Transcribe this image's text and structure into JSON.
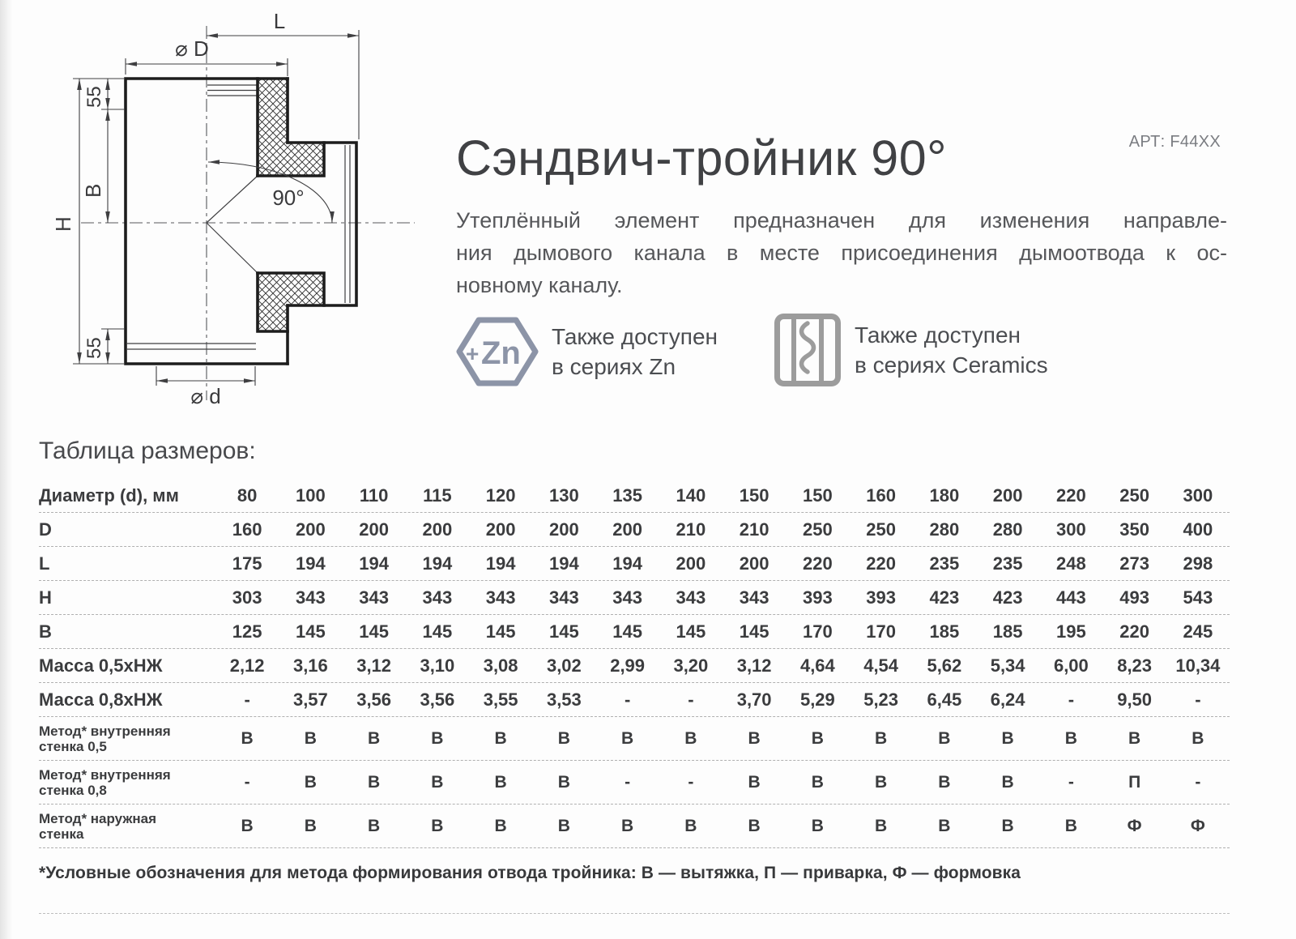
{
  "header": {
    "title": "Сэндвич-тройник 90°",
    "article": "АРТ: F44XX",
    "description_lines": [
      "Утеплённый элемент предназначен для изменения направле-",
      "ния дымового канала в месте присоединения дымоотвода к ос-",
      "новному каналу."
    ]
  },
  "availability": [
    {
      "icon": "zn-series-icon",
      "icon_plus": "+",
      "icon_label": "Zn",
      "lines": [
        "Также доступен",
        "в сериях Zn"
      ]
    },
    {
      "icon": "ceramics-series-icon",
      "lines": [
        "Также доступен",
        "в сериях Ceramics"
      ]
    }
  ],
  "colors": {
    "zn_accent": "#8c94a7",
    "ceramics_accent": "#9c9c9c",
    "drawing_thick_line": "#1d1d1d",
    "drawing_thin_line": "#3f3f41",
    "table_text": "#3b3c3e"
  },
  "drawing": {
    "labels": {
      "l": "L",
      "diam_D": "⌀ D",
      "h": "H",
      "b": "B",
      "top_55": "55",
      "bottom_55": "55",
      "angle": "90°",
      "diam_d": "⌀ d"
    }
  },
  "table": {
    "title": "Таблица размеров:",
    "rows": [
      {
        "label": "Диаметр (d), мм",
        "values": [
          "80",
          "100",
          "110",
          "115",
          "120",
          "130",
          "135",
          "140",
          "150",
          "150",
          "160",
          "180",
          "200",
          "220",
          "250",
          "300"
        ]
      },
      {
        "label": "D",
        "values": [
          "160",
          "200",
          "200",
          "200",
          "200",
          "200",
          "200",
          "210",
          "210",
          "250",
          "250",
          "280",
          "280",
          "300",
          "350",
          "400"
        ]
      },
      {
        "label": "L",
        "values": [
          "175",
          "194",
          "194",
          "194",
          "194",
          "194",
          "194",
          "200",
          "200",
          "220",
          "220",
          "235",
          "235",
          "248",
          "273",
          "298"
        ]
      },
      {
        "label": "H",
        "values": [
          "303",
          "343",
          "343",
          "343",
          "343",
          "343",
          "343",
          "343",
          "343",
          "393",
          "393",
          "423",
          "423",
          "443",
          "493",
          "543"
        ]
      },
      {
        "label": "B",
        "values": [
          "125",
          "145",
          "145",
          "145",
          "145",
          "145",
          "145",
          "145",
          "145",
          "170",
          "170",
          "185",
          "185",
          "195",
          "220",
          "245"
        ]
      },
      {
        "label": "Масса 0,5хНЖ",
        "values": [
          "2,12",
          "3,16",
          "3,12",
          "3,10",
          "3,08",
          "3,02",
          "2,99",
          "3,20",
          "3,12",
          "4,64",
          "4,54",
          "5,62",
          "5,34",
          "6,00",
          "8,23",
          "10,34"
        ]
      },
      {
        "label": "Масса 0,8хНЖ",
        "values": [
          "-",
          "3,57",
          "3,56",
          "3,56",
          "3,55",
          "3,53",
          "-",
          "-",
          "3,70",
          "5,29",
          "5,23",
          "6,45",
          "6,24",
          "-",
          "9,50",
          "-"
        ]
      },
      {
        "label": "Метод* внутренняя\nстенка 0,5",
        "tall": true,
        "values": [
          "В",
          "В",
          "В",
          "В",
          "В",
          "В",
          "В",
          "В",
          "В",
          "В",
          "В",
          "В",
          "В",
          "В",
          "В",
          "В"
        ]
      },
      {
        "label": "Метод* внутренняя\nстенка 0,8",
        "tall": true,
        "values": [
          "-",
          "В",
          "В",
          "В",
          "В",
          "В",
          "-",
          "-",
          "В",
          "В",
          "В",
          "В",
          "В",
          "-",
          "П",
          "-"
        ]
      },
      {
        "label": "Метод* наружная\nстенка",
        "tall": true,
        "values": [
          "В",
          "В",
          "В",
          "В",
          "В",
          "В",
          "В",
          "В",
          "В",
          "В",
          "В",
          "В",
          "В",
          "В",
          "Ф",
          "Ф"
        ]
      }
    ]
  },
  "footnote": "*Условные обозначения для метода формирования отвода тройника: В — вытяжка, П — приварка, Ф — формовка"
}
